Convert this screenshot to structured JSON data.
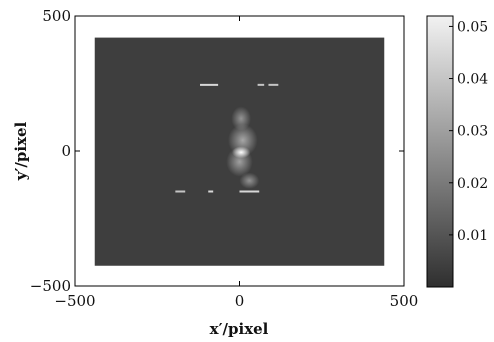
{
  "chart_data": {
    "type": "heatmap",
    "title": "",
    "xlabel": "x′/pixel",
    "ylabel": "y′/pixel",
    "xlim": [
      -500,
      500
    ],
    "ylim": [
      -500,
      500
    ],
    "x_ticks": [
      -500,
      0,
      500
    ],
    "y_ticks": [
      -500,
      0,
      500
    ],
    "x_tick_labels": [
      "−500",
      "0",
      "500"
    ],
    "y_tick_labels": [
      "−500",
      "0",
      "500"
    ],
    "data_extent": {
      "x": [
        -440,
        440
      ],
      "y": [
        -425,
        420
      ]
    },
    "background_value": 0.004,
    "colormap": "gray",
    "colorbar": {
      "range": [
        0,
        0.052
      ],
      "ticks": [
        0.01,
        0.02,
        0.03,
        0.04,
        0.05
      ],
      "tick_labels": [
        "0.01",
        "0.02",
        "0.03",
        "0.04",
        "0.05"
      ],
      "placement": "right"
    },
    "features": [
      {
        "kind": "blob",
        "x": 5,
        "y": -5,
        "rx": 28,
        "ry": 22,
        "value": 0.05
      },
      {
        "kind": "blob",
        "x": 10,
        "y": 40,
        "rx": 45,
        "ry": 60,
        "value": 0.018
      },
      {
        "kind": "blob",
        "x": 0,
        "y": -40,
        "rx": 40,
        "ry": 55,
        "value": 0.016
      },
      {
        "kind": "blob",
        "x": 5,
        "y": 120,
        "rx": 30,
        "ry": 45,
        "value": 0.012
      },
      {
        "kind": "blob",
        "x": 30,
        "y": -110,
        "rx": 30,
        "ry": 30,
        "value": 0.012
      },
      {
        "kind": "streak",
        "x1": -120,
        "x2": -65,
        "y": 245,
        "value": 0.045
      },
      {
        "kind": "streak",
        "x1": 55,
        "x2": 75,
        "y": 245,
        "value": 0.04
      },
      {
        "kind": "streak",
        "x1": 88,
        "x2": 118,
        "y": 245,
        "value": 0.04
      },
      {
        "kind": "streak",
        "x1": -195,
        "x2": -165,
        "y": -150,
        "value": 0.04
      },
      {
        "kind": "streak",
        "x1": -95,
        "x2": -80,
        "y": -150,
        "value": 0.045
      },
      {
        "kind": "streak",
        "x1": 0,
        "x2": 60,
        "y": -150,
        "value": 0.045
      }
    ]
  }
}
